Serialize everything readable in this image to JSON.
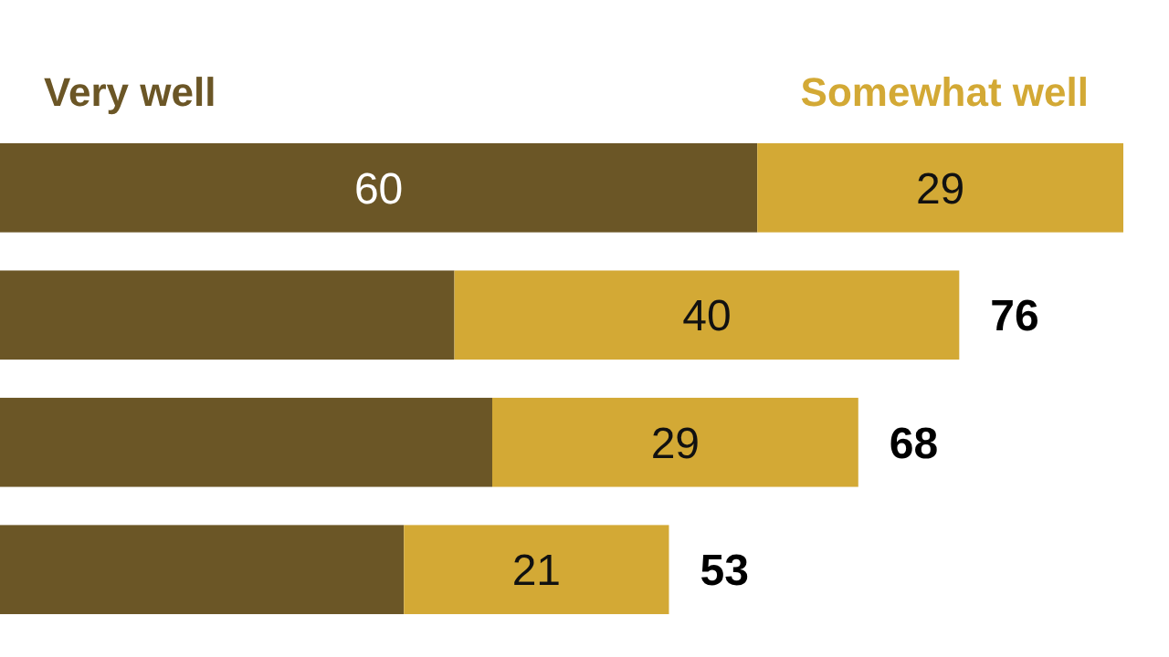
{
  "chart_data": {
    "type": "bar",
    "orientation": "horizontal",
    "stacked": true,
    "legend": "top",
    "categories": [
      null,
      null,
      null,
      null
    ],
    "series": [
      {
        "name": "Very well",
        "color": "#6b5626",
        "values": [
          60,
          36,
          39,
          32
        ],
        "value_labels": [
          "60",
          null,
          null,
          null
        ]
      },
      {
        "name": "Somewhat well",
        "color": "#d3a935",
        "values": [
          29,
          40,
          29,
          21
        ],
        "value_labels": [
          "29",
          "40",
          "29",
          "21"
        ]
      }
    ],
    "totals": [
      null,
      "76",
      "68",
      "53"
    ]
  }
}
